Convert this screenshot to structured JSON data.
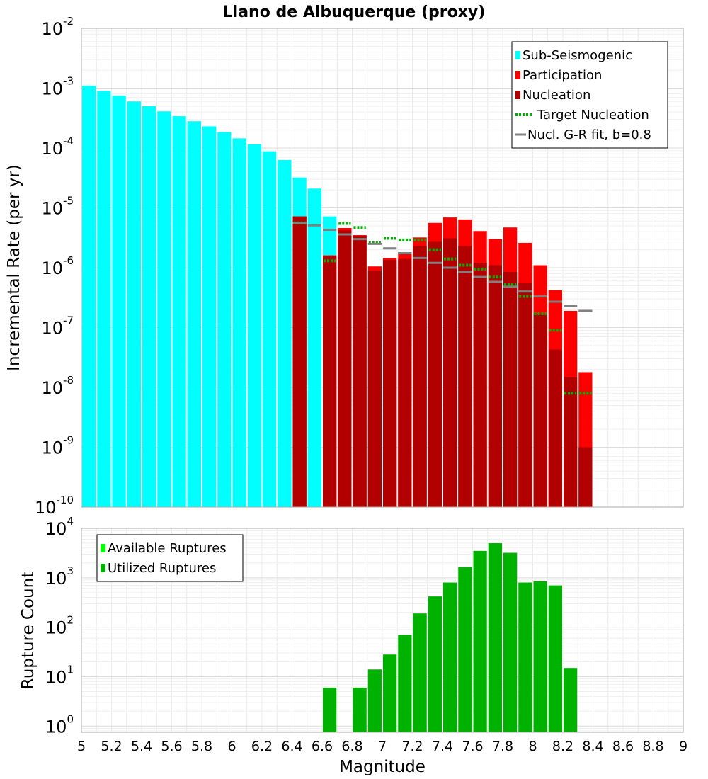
{
  "chart_data": [
    {
      "type": "bar",
      "title": "Llano de Albuquerque (proxy)",
      "xlabel": "Magnitude",
      "ylabel": "Incremental Rate (per yr)",
      "yscale": "log",
      "xlim": [
        5,
        9
      ],
      "ylim": [
        1e-10,
        0.01
      ],
      "bin_width": 0.1,
      "grid": true,
      "legend_position": "top-right",
      "x_ticks": [
        "5",
        "5.2",
        "5.4",
        "5.6",
        "5.8",
        "6",
        "6.2",
        "6.4",
        "6.6",
        "6.8",
        "7",
        "7.2",
        "7.4",
        "7.6",
        "7.8",
        "8",
        "8.2",
        "8.4",
        "8.6",
        "8.8",
        "9"
      ],
      "y_tick_labels": [
        {
          "base": "10",
          "exp": "-10",
          "value": 1e-10
        },
        {
          "base": "10",
          "exp": "-9",
          "value": 1e-09
        },
        {
          "base": "10",
          "exp": "-8",
          "value": 1e-08
        },
        {
          "base": "10",
          "exp": "-7",
          "value": 1e-07
        },
        {
          "base": "10",
          "exp": "-6",
          "value": 1e-06
        },
        {
          "base": "10",
          "exp": "-5",
          "value": 1e-05
        },
        {
          "base": "10",
          "exp": "-4",
          "value": 0.0001
        },
        {
          "base": "10",
          "exp": "-3",
          "value": 0.001
        },
        {
          "base": "10",
          "exp": "-2",
          "value": 0.01
        }
      ],
      "legend": [
        {
          "label": "Sub-Seismogenic",
          "color": "#00ffff",
          "style": "box"
        },
        {
          "label": "Participation",
          "color": "#ff0000",
          "style": "box"
        },
        {
          "label": "Nucleation",
          "color": "#b20000",
          "style": "box"
        },
        {
          "label": "Target Nucleation",
          "color": "#00b200",
          "style": "dotted"
        },
        {
          "label": "Nucl. G-R fit, b=0.8",
          "color": "#808080",
          "style": "line"
        }
      ],
      "series": [
        {
          "name": "Sub-Seismogenic",
          "color": "#00ffff",
          "x": [
            5.05,
            5.15,
            5.25,
            5.35,
            5.45,
            5.55,
            5.65,
            5.75,
            5.85,
            5.95,
            6.05,
            6.15,
            6.25,
            6.35,
            6.45,
            6.55,
            6.65
          ],
          "values": [
            0.0011,
            0.0009,
            0.00075,
            0.0006,
            0.0005,
            0.00041,
            0.00034,
            0.00028,
            0.00023,
            0.000185,
            0.000145,
            0.000115,
            8.8e-05,
            6.3e-05,
            3.2e-05,
            2.1e-05,
            7.2e-06
          ]
        },
        {
          "name": "Participation",
          "color": "#ff0000",
          "x": [
            6.45,
            6.65,
            6.75,
            6.85,
            6.95,
            7.05,
            7.15,
            7.25,
            7.35,
            7.45,
            7.55,
            7.65,
            7.75,
            7.85,
            7.95,
            8.05,
            8.15,
            8.25,
            8.35
          ],
          "values": [
            7.2e-06,
            1.6e-06,
            4.6e-06,
            3.5e-06,
            1.05e-06,
            1.45e-06,
            1.8e-06,
            3.2e-06,
            5.6e-06,
            6.9e-06,
            6.4e-06,
            4.1e-06,
            3e-06,
            4.7e-06,
            2.6e-06,
            1.1e-06,
            4.2e-07,
            1.9e-07,
            1.8e-08
          ]
        },
        {
          "name": "Nucleation",
          "color": "#b20000",
          "x": [
            6.45,
            6.65,
            6.75,
            6.85,
            6.95,
            7.05,
            7.15,
            7.25,
            7.35,
            7.45,
            7.55,
            7.65,
            7.75,
            7.85,
            7.95,
            8.05,
            8.15,
            8.25,
            8.35
          ],
          "values": [
            7.2e-06,
            1.6e-06,
            4.2e-06,
            3.4e-06,
            9e-07,
            1.35e-06,
            1.4e-06,
            2.3e-06,
            2.7e-06,
            3.1e-06,
            2.3e-06,
            1.2e-06,
            1.1e-06,
            8.5e-07,
            5.5e-07,
            1.65e-07,
            4.3e-08,
            1.5e-08,
            1e-09
          ]
        },
        {
          "name": "Target Nucleation",
          "color": "#00b200",
          "x": [
            6.45,
            6.65,
            6.75,
            6.85,
            6.95,
            7.05,
            7.15,
            7.25,
            7.35,
            7.45,
            7.55,
            7.65,
            7.75,
            7.85,
            7.95,
            8.05,
            8.15,
            8.25,
            8.35
          ],
          "values": [
            5.6e-06,
            1.3e-06,
            5.5e-06,
            4.7e-06,
            2.6e-06,
            3.1e-06,
            2.9e-06,
            2.9e-06,
            2e-06,
            1.4e-06,
            1.1e-06,
            9.5e-07,
            7e-07,
            5.2e-07,
            3.3e-07,
            1.7e-07,
            9e-08,
            8e-09,
            8e-09
          ]
        },
        {
          "name": "Nucl. G-R fit, b=0.8",
          "color": "#808080",
          "x": [
            6.45,
            6.55,
            6.65,
            6.75,
            6.85,
            6.95,
            7.05,
            7.15,
            7.25,
            7.35,
            7.45,
            7.55,
            7.65,
            7.75,
            7.85,
            7.95,
            8.05,
            8.15,
            8.25,
            8.35
          ],
          "values": [
            5.6e-06,
            5.1e-06,
            4.3e-06,
            3.6e-06,
            3e-06,
            2.5e-06,
            2.1e-06,
            1.75e-06,
            1.45e-06,
            1.2e-06,
            1e-06,
            8.5e-07,
            7e-07,
            5.8e-07,
            4.8e-07,
            4e-07,
            3.3e-07,
            2.7e-07,
            2.3e-07,
            1.9e-07
          ]
        }
      ]
    },
    {
      "type": "bar",
      "xlabel": "Magnitude",
      "ylabel": "Rupture Count",
      "yscale": "log",
      "xlim": [
        5,
        9
      ],
      "ylim": [
        0.75,
        10000.0
      ],
      "bin_width": 0.1,
      "grid": true,
      "legend_position": "top-left",
      "y_tick_labels": [
        {
          "base": "10",
          "exp": "0",
          "value": 1
        },
        {
          "base": "10",
          "exp": "1",
          "value": 10
        },
        {
          "base": "10",
          "exp": "2",
          "value": 100
        },
        {
          "base": "10",
          "exp": "3",
          "value": 1000
        },
        {
          "base": "10",
          "exp": "4",
          "value": 10000
        }
      ],
      "legend": [
        {
          "label": "Available Ruptures",
          "color": "#00ff00",
          "style": "box"
        },
        {
          "label": "Utilized Ruptures",
          "color": "#00b200",
          "style": "box"
        }
      ],
      "series": [
        {
          "name": "Utilized Ruptures",
          "color": "#00b200",
          "x": [
            6.65,
            6.85,
            6.95,
            7.05,
            7.15,
            7.25,
            7.35,
            7.45,
            7.55,
            7.65,
            7.75,
            7.85,
            7.95,
            8.05,
            8.15,
            8.25
          ],
          "values": [
            6,
            6,
            14,
            28,
            70,
            190,
            420,
            800,
            1650,
            3500,
            5000,
            3200,
            800,
            850,
            700,
            15
          ]
        }
      ]
    }
  ]
}
